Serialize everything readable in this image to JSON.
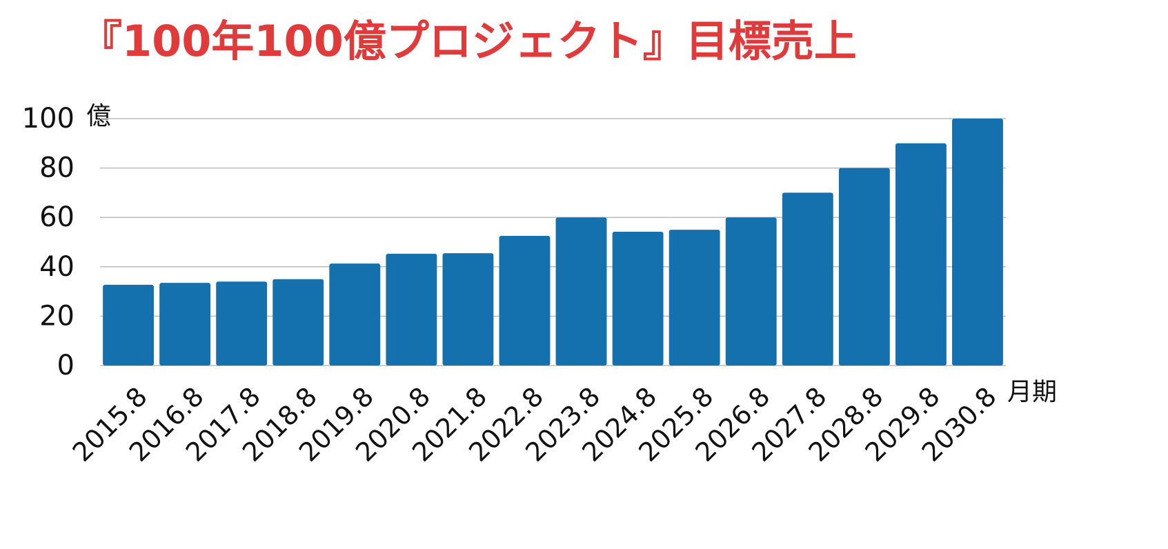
{
  "chart_data": {
    "type": "bar",
    "title": "『100年100億プロジェクト』目標売上",
    "ylabel": "億",
    "xlabel": "月期",
    "categories": [
      "2015.8",
      "2016.8",
      "2017.8",
      "2018.8",
      "2019.8",
      "2020.8",
      "2021.8",
      "2022.8",
      "2023.8",
      "2024.8",
      "2025.8",
      "2026.8",
      "2027.8",
      "2028.8",
      "2029.8",
      "2030.8"
    ],
    "values": [
      32.7,
      33.5,
      34,
      35,
      41.3,
      45.3,
      45.5,
      52.5,
      60,
      54.2,
      55,
      60,
      70,
      80,
      90,
      100
    ],
    "color": "#1570ae",
    "ylim": [
      0,
      100
    ],
    "yticks": [
      0,
      20,
      40,
      60,
      80,
      100
    ],
    "grid": true
  }
}
